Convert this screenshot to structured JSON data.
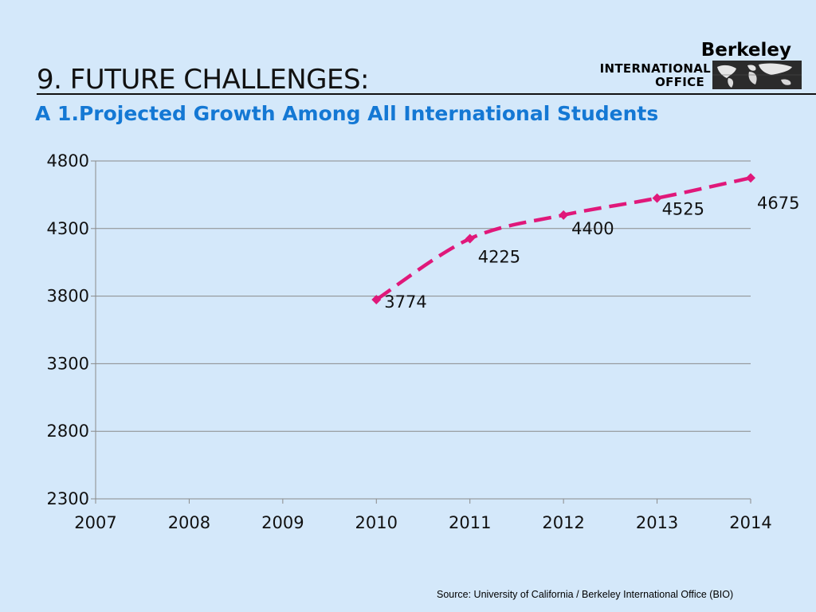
{
  "slide": {
    "title": "9.  FUTURE CHALLENGES:",
    "subtitle": "A 1.Projected Growth Among All International Students",
    "source": "Source:  University of California / Berkeley International Office (BIO)"
  },
  "logo": {
    "name": "Berkeley",
    "line1": "INTERNATIONAL",
    "line2": "OFFICE",
    "image": "world-map-icon"
  },
  "colors": {
    "background": "#d4e8fa",
    "subtitle": "#1478d4",
    "series": "#e0187a"
  },
  "chart_data": {
    "type": "line",
    "title": "",
    "xlabel": "",
    "ylabel": "",
    "x_ticks": [
      2007,
      2008,
      2009,
      2010,
      2011,
      2012,
      2013,
      2014
    ],
    "y_ticks": [
      2300,
      2800,
      3300,
      3800,
      4300,
      4800
    ],
    "xlim": [
      2007,
      2014
    ],
    "ylim": [
      2300,
      4800
    ],
    "grid": "horizontal",
    "line_style": "dashed, smoothed, diamond markers",
    "series": [
      {
        "x": [
          2010,
          2011,
          2012,
          2013,
          2014
        ],
        "values": [
          3774,
          4225,
          4400,
          4525,
          4675
        ],
        "labels": [
          "3774",
          "4225",
          "4400",
          "4525",
          "4675"
        ]
      }
    ]
  }
}
